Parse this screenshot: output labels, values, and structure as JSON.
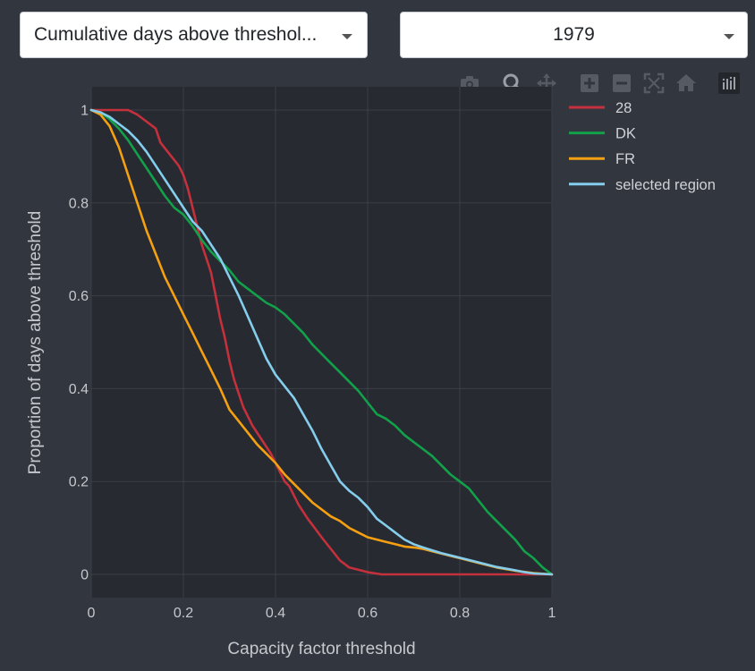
{
  "controls": {
    "metric_dropdown": {
      "value": "Cumulative days above threshol..."
    },
    "year_dropdown": {
      "value": "1979"
    }
  },
  "modebar": {
    "buttons": [
      "camera-icon",
      "zoom-icon",
      "pan-icon",
      "zoom-in-icon",
      "zoom-out-icon",
      "autoscale-icon",
      "home-icon",
      "plotly-logo-icon"
    ]
  },
  "colors": {
    "page_bg": "#32363f",
    "plot_bg": "#272a31",
    "grid": "#3b3f46",
    "tick_text": "#c5c8cc",
    "legend_text": "#cfd2d6"
  },
  "chart_data": {
    "type": "line",
    "title": "",
    "xlabel": "Capacity factor threshold",
    "ylabel": "Proportion of days above threshold",
    "xlim": [
      0,
      1
    ],
    "ylim": [
      -0.05,
      1.05
    ],
    "xticks": [
      0,
      0.2,
      0.4,
      0.6,
      0.8,
      1
    ],
    "xtick_labels": [
      "0",
      "0.2",
      "0.4",
      "0.6",
      "0.8",
      "1"
    ],
    "yticks": [
      0,
      0.2,
      0.4,
      0.6,
      0.8,
      1
    ],
    "ytick_labels": [
      "0",
      "0.2",
      "0.4",
      "0.6",
      "0.8",
      "1"
    ],
    "grid": true,
    "legend_position": "right-top",
    "series": [
      {
        "name": "28",
        "color": "#c4303c",
        "x": [
          0,
          0.05,
          0.08,
          0.1,
          0.12,
          0.14,
          0.15,
          0.17,
          0.19,
          0.2,
          0.21,
          0.22,
          0.23,
          0.24,
          0.25,
          0.26,
          0.27,
          0.28,
          0.29,
          0.3,
          0.31,
          0.32,
          0.33,
          0.35,
          0.37,
          0.39,
          0.4,
          0.41,
          0.42,
          0.43,
          0.45,
          0.47,
          0.5,
          0.52,
          0.54,
          0.56,
          0.58,
          0.6,
          0.63,
          0.66,
          0.7,
          1.0
        ],
        "y": [
          1.0,
          1.0,
          1.0,
          0.99,
          0.975,
          0.96,
          0.93,
          0.905,
          0.88,
          0.86,
          0.83,
          0.79,
          0.75,
          0.71,
          0.68,
          0.65,
          0.6,
          0.55,
          0.51,
          0.46,
          0.42,
          0.39,
          0.36,
          0.32,
          0.29,
          0.26,
          0.24,
          0.22,
          0.2,
          0.19,
          0.15,
          0.12,
          0.08,
          0.055,
          0.03,
          0.015,
          0.01,
          0.005,
          0.0,
          0.0,
          0.0,
          0.0
        ]
      },
      {
        "name": "DK",
        "color": "#12a14a",
        "x": [
          0,
          0.02,
          0.04,
          0.06,
          0.08,
          0.1,
          0.12,
          0.14,
          0.16,
          0.18,
          0.2,
          0.22,
          0.24,
          0.26,
          0.28,
          0.3,
          0.32,
          0.34,
          0.36,
          0.38,
          0.4,
          0.42,
          0.44,
          0.46,
          0.48,
          0.5,
          0.52,
          0.54,
          0.56,
          0.58,
          0.6,
          0.62,
          0.64,
          0.66,
          0.68,
          0.7,
          0.72,
          0.74,
          0.76,
          0.78,
          0.8,
          0.82,
          0.84,
          0.86,
          0.88,
          0.9,
          0.92,
          0.94,
          0.96,
          0.98,
          1.0
        ],
        "y": [
          1.0,
          0.995,
          0.98,
          0.96,
          0.935,
          0.905,
          0.875,
          0.845,
          0.815,
          0.79,
          0.775,
          0.75,
          0.72,
          0.695,
          0.675,
          0.655,
          0.63,
          0.615,
          0.6,
          0.585,
          0.575,
          0.56,
          0.54,
          0.52,
          0.495,
          0.475,
          0.455,
          0.435,
          0.415,
          0.395,
          0.37,
          0.345,
          0.335,
          0.32,
          0.3,
          0.285,
          0.27,
          0.255,
          0.235,
          0.215,
          0.2,
          0.185,
          0.16,
          0.135,
          0.115,
          0.095,
          0.075,
          0.05,
          0.035,
          0.015,
          0.0
        ]
      },
      {
        "name": "FR",
        "color": "#f5a011",
        "x": [
          0,
          0.02,
          0.04,
          0.06,
          0.08,
          0.1,
          0.12,
          0.14,
          0.16,
          0.18,
          0.2,
          0.22,
          0.24,
          0.26,
          0.28,
          0.3,
          0.32,
          0.34,
          0.36,
          0.38,
          0.4,
          0.42,
          0.44,
          0.46,
          0.48,
          0.5,
          0.52,
          0.54,
          0.56,
          0.58,
          0.6,
          0.62,
          0.64,
          0.66,
          0.68,
          0.7,
          0.72,
          0.74,
          0.76,
          0.8,
          0.84,
          0.88,
          0.92,
          0.96,
          1.0
        ],
        "y": [
          1.0,
          0.99,
          0.965,
          0.92,
          0.86,
          0.8,
          0.74,
          0.69,
          0.64,
          0.6,
          0.56,
          0.52,
          0.48,
          0.44,
          0.4,
          0.355,
          0.33,
          0.305,
          0.28,
          0.26,
          0.24,
          0.215,
          0.195,
          0.175,
          0.155,
          0.14,
          0.125,
          0.115,
          0.1,
          0.09,
          0.08,
          0.075,
          0.07,
          0.065,
          0.06,
          0.058,
          0.055,
          0.05,
          0.045,
          0.035,
          0.025,
          0.015,
          0.008,
          0.003,
          0.0
        ]
      },
      {
        "name": "selected region",
        "color": "#84cdec",
        "x": [
          0,
          0.02,
          0.04,
          0.06,
          0.08,
          0.1,
          0.12,
          0.14,
          0.16,
          0.18,
          0.2,
          0.22,
          0.24,
          0.26,
          0.28,
          0.3,
          0.32,
          0.34,
          0.36,
          0.38,
          0.4,
          0.42,
          0.44,
          0.46,
          0.48,
          0.5,
          0.52,
          0.54,
          0.56,
          0.58,
          0.6,
          0.62,
          0.64,
          0.66,
          0.68,
          0.7,
          0.72,
          0.74,
          0.76,
          0.8,
          0.84,
          0.88,
          0.92,
          0.94,
          0.96,
          1.0
        ],
        "y": [
          1.0,
          0.995,
          0.985,
          0.97,
          0.955,
          0.935,
          0.91,
          0.88,
          0.85,
          0.82,
          0.79,
          0.76,
          0.74,
          0.71,
          0.68,
          0.64,
          0.6,
          0.555,
          0.51,
          0.465,
          0.43,
          0.405,
          0.38,
          0.345,
          0.31,
          0.27,
          0.235,
          0.2,
          0.18,
          0.165,
          0.145,
          0.12,
          0.105,
          0.09,
          0.075,
          0.065,
          0.058,
          0.052,
          0.046,
          0.036,
          0.026,
          0.016,
          0.009,
          0.005,
          0.002,
          0.0
        ]
      }
    ]
  }
}
